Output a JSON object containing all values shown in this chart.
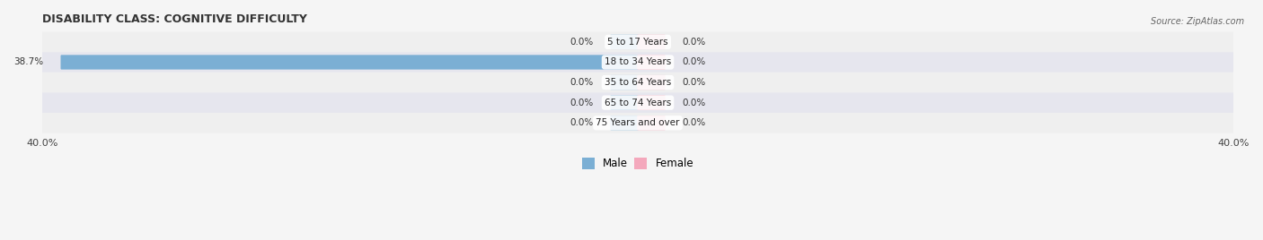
{
  "title": "DISABILITY CLASS: COGNITIVE DIFFICULTY",
  "source": "Source: ZipAtlas.com",
  "categories": [
    "5 to 17 Years",
    "18 to 34 Years",
    "35 to 64 Years",
    "65 to 74 Years",
    "75 Years and over"
  ],
  "male_values": [
    0.0,
    38.7,
    0.0,
    0.0,
    0.0
  ],
  "female_values": [
    0.0,
    0.0,
    0.0,
    0.0,
    0.0
  ],
  "x_max": 40.0,
  "male_color": "#7bafd4",
  "female_color": "#f4a8bc",
  "row_colors": [
    "#efefef",
    "#e6e6ee"
  ],
  "title_fontsize": 9,
  "bar_height": 0.62,
  "stub_size": 1.8,
  "legend_male": "Male",
  "legend_female": "Female"
}
